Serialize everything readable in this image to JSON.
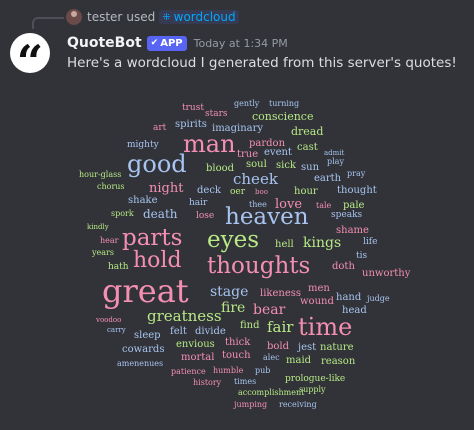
{
  "reply": {
    "username": "tester",
    "used_text": "used",
    "command": "wordcloud"
  },
  "message": {
    "bot_name": "QuoteBot",
    "badge": "APP",
    "timestamp": "Today at 1:34 PM",
    "text": "Here's a wordcloud I generated from this server's quotes!"
  },
  "colors": {
    "pink": "#f48fb1",
    "green": "#b8e986",
    "blue": "#a8c4f0",
    "accent": "#5865f2"
  },
  "words": [
    "trust",
    "gently",
    "turning",
    "stars",
    "conscience",
    "spirits",
    "art",
    "imaginary",
    "dread",
    "man",
    "mighty",
    "pardon",
    "cast",
    "admit",
    "true",
    "event",
    "play",
    "sick",
    "sun",
    "pray",
    "good",
    "blood",
    "soul",
    "earth",
    "hour-glass",
    "chorus",
    "cheek",
    "night",
    "deck",
    "oer",
    "boo",
    "hour",
    "thought",
    "hair",
    "tale",
    "pale",
    "shake",
    "love",
    "spork",
    "thee",
    "lose",
    "death",
    "speaks",
    "heaven",
    "kindly",
    "shame",
    "hear",
    "parts",
    "eyes",
    "kings",
    "life",
    "hell",
    "years",
    "tis",
    "hold",
    "thoughts",
    "doth",
    "hath",
    "unworthy",
    "great",
    "stage",
    "likeness",
    "bear",
    "judge",
    "hand",
    "fire",
    "wound",
    "greatness",
    "head",
    "voodoo",
    "carry",
    "time",
    "find",
    "fair",
    "felt",
    "divide",
    "sleep",
    "envious",
    "thick",
    "bold",
    "jest",
    "nature",
    "cowards",
    "amenenues",
    "mortal",
    "touch",
    "alec",
    "maid",
    "reason",
    "patience",
    "humble",
    "pub",
    "history",
    "prologue-like",
    "supply",
    "times",
    "accomplishment",
    "jumping",
    "receiving",
    "men"
  ]
}
